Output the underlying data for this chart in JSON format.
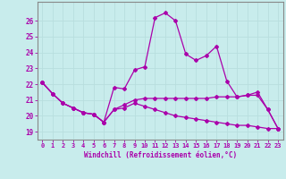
{
  "title": "",
  "xlabel": "Windchill (Refroidissement éolien,°C)",
  "ylabel": "",
  "background_color": "#c8ecec",
  "line_color": "#aa00aa",
  "grid_color": "#aad8d8",
  "xlim": [
    -0.5,
    23.5
  ],
  "ylim": [
    18.5,
    27.2
  ],
  "yticks": [
    19,
    20,
    21,
    22,
    23,
    24,
    25,
    26
  ],
  "xticks": [
    0,
    1,
    2,
    3,
    4,
    5,
    6,
    7,
    8,
    9,
    10,
    11,
    12,
    13,
    14,
    15,
    16,
    17,
    18,
    19,
    20,
    21,
    22,
    23
  ],
  "series": [
    [
      22.1,
      21.4,
      20.8,
      20.5,
      20.2,
      20.1,
      19.6,
      21.8,
      21.7,
      22.9,
      23.1,
      26.2,
      26.5,
      26.0,
      23.9,
      23.5,
      23.8,
      24.4,
      22.2,
      21.2,
      21.3,
      21.5,
      20.4,
      19.2
    ],
    [
      22.1,
      21.4,
      20.8,
      20.5,
      20.2,
      20.1,
      19.6,
      20.4,
      20.7,
      21.0,
      21.1,
      21.1,
      21.1,
      21.1,
      21.1,
      21.1,
      21.1,
      21.2,
      21.2,
      21.2,
      21.3,
      21.3,
      20.4,
      19.2
    ],
    [
      22.1,
      21.4,
      20.8,
      20.5,
      20.2,
      20.1,
      19.6,
      20.4,
      20.5,
      20.8,
      20.6,
      20.4,
      20.2,
      20.0,
      19.9,
      19.8,
      19.7,
      19.6,
      19.5,
      19.4,
      19.4,
      19.3,
      19.2,
      19.2
    ]
  ]
}
